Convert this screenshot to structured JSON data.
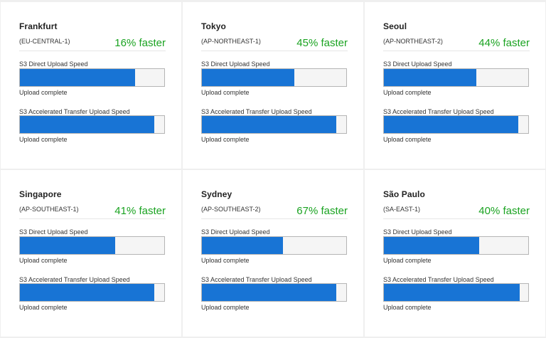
{
  "regions": [
    {
      "city": "Frankfurt",
      "code": "(EU-CENTRAL-1)",
      "faster": "16% faster",
      "direct": {
        "label": "S3 Direct Upload Speed",
        "progress": 0.8,
        "status": "Upload complete"
      },
      "accelerated": {
        "label": "S3 Accelerated Transfer Upload Speed",
        "progress": 0.93,
        "status": "Upload complete"
      }
    },
    {
      "city": "Tokyo",
      "code": "(AP-NORTHEAST-1)",
      "faster": "45% faster",
      "direct": {
        "label": "S3 Direct Upload Speed",
        "progress": 0.64,
        "status": "Upload complete"
      },
      "accelerated": {
        "label": "S3 Accelerated Transfer Upload Speed",
        "progress": 0.93,
        "status": "Upload complete"
      }
    },
    {
      "city": "Seoul",
      "code": "(AP-NORTHEAST-2)",
      "faster": "44% faster",
      "direct": {
        "label": "S3 Direct Upload Speed",
        "progress": 0.64,
        "status": "Upload complete"
      },
      "accelerated": {
        "label": "S3 Accelerated Transfer Upload Speed",
        "progress": 0.93,
        "status": "Upload complete"
      }
    },
    {
      "city": "Singapore",
      "code": "(AP-SOUTHEAST-1)",
      "faster": "41% faster",
      "direct": {
        "label": "S3 Direct Upload Speed",
        "progress": 0.66,
        "status": "Upload complete"
      },
      "accelerated": {
        "label": "S3 Accelerated Transfer Upload Speed",
        "progress": 0.93,
        "status": "Upload complete"
      }
    },
    {
      "city": "Sydney",
      "code": "(AP-SOUTHEAST-2)",
      "faster": "67% faster",
      "direct": {
        "label": "S3 Direct Upload Speed",
        "progress": 0.56,
        "status": "Upload complete"
      },
      "accelerated": {
        "label": "S3 Accelerated Transfer Upload Speed",
        "progress": 0.93,
        "status": "Upload complete"
      }
    },
    {
      "city": "São Paulo",
      "code": "(SA-EAST-1)",
      "faster": "40% faster",
      "direct": {
        "label": "S3 Direct Upload Speed",
        "progress": 0.66,
        "status": "Upload complete"
      },
      "accelerated": {
        "label": "S3 Accelerated Transfer Upload Speed",
        "progress": 0.94,
        "status": "Upload complete"
      }
    }
  ],
  "colors": {
    "bar_fill": "#1874d5",
    "faster_text": "#1aa321"
  }
}
